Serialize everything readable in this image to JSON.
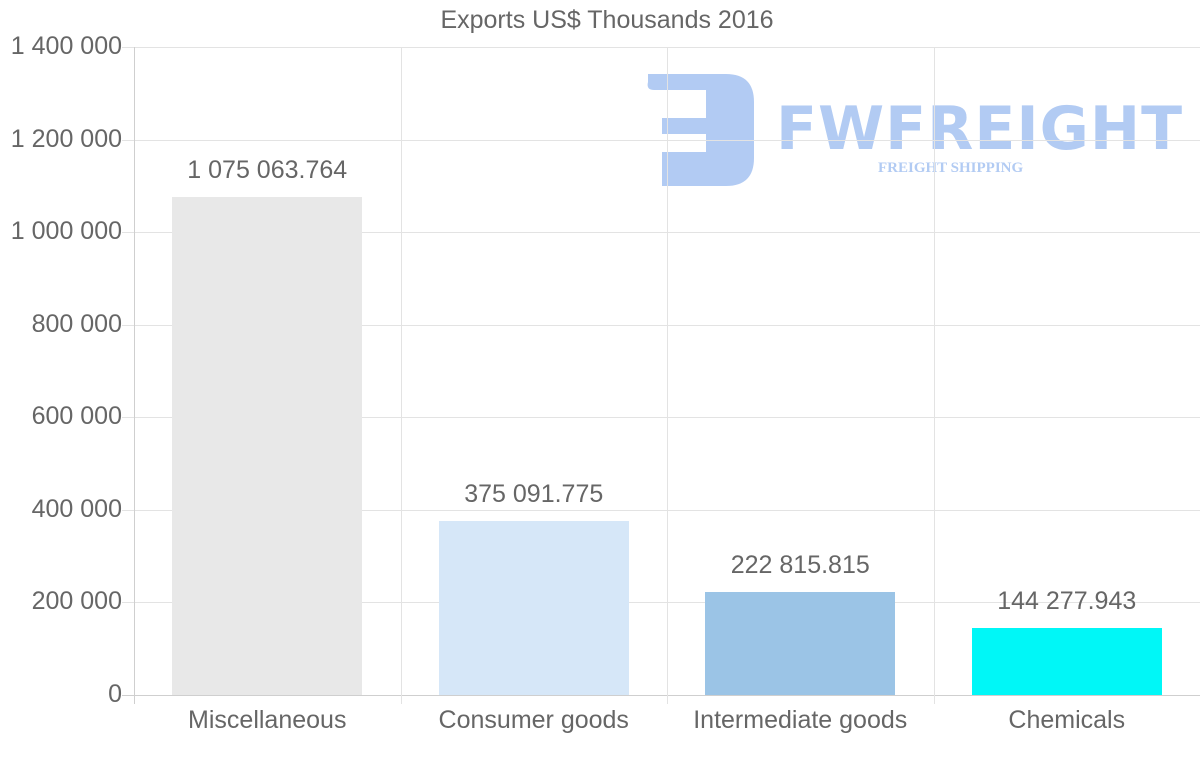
{
  "chart_data": {
    "type": "bar",
    "title": "Exports US$ Thousands 2016",
    "categories": [
      "Miscellaneous",
      "Consumer goods",
      "Intermediate goods",
      "Chemicals"
    ],
    "values": [
      1075063.764,
      375091.775,
      222815.815,
      144277.943
    ],
    "value_labels": [
      "1 075 063.764",
      "375 091.775",
      "222 815.815",
      "144 277.943"
    ],
    "colors": [
      "#E8E8E8",
      "#D6E7F8",
      "#9BC4E6",
      "#00F7F7"
    ],
    "xlabel": "",
    "ylabel": "",
    "ylim": [
      0,
      1400000
    ],
    "yticks": [
      0,
      200000,
      400000,
      600000,
      800000,
      1000000,
      1200000,
      1400000
    ],
    "ytick_labels": [
      "0",
      "200 000",
      "400 000",
      "600 000",
      "800 000",
      "1 000 000",
      "1 200 000",
      "1 400 000"
    ],
    "grid": true,
    "legend": null
  },
  "watermark": {
    "brand": "FWFREIGHT",
    "tagline": "FREIGHT SHIPPING",
    "color": "#B2CBF3"
  }
}
